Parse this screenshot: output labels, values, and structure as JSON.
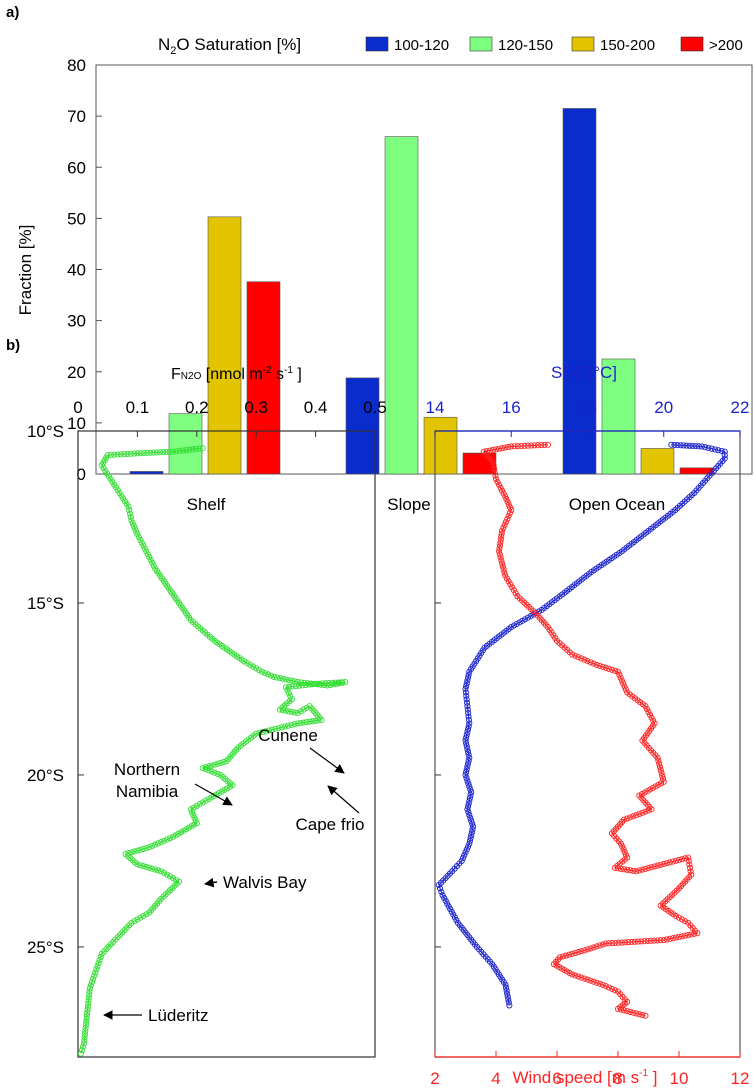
{
  "chart_data": [
    {
      "panel_label": "a)",
      "type": "bar",
      "legend_title": "N2O Saturation [%]",
      "legend_title_parts": {
        "main": "N",
        "sub": "2",
        "rest": "O Saturation [%]"
      },
      "legend_position": "top",
      "ylabel": "Fraction [%]",
      "ylim": [
        0,
        80
      ],
      "yticks": [
        0,
        10,
        20,
        30,
        40,
        50,
        60,
        70,
        80
      ],
      "categories": [
        "Shelf",
        "Slope",
        "Open Ocean"
      ],
      "series": [
        {
          "name": "100-120",
          "color": "#0a2ccc",
          "values": [
            0.5,
            18.8,
            71.5
          ]
        },
        {
          "name": "120-150",
          "color": "#7fff7f",
          "values": [
            11.8,
            66.0,
            22.5
          ]
        },
        {
          "name": "150-200",
          "color": "#e2c400",
          "values": [
            50.3,
            11.1,
            5.0
          ]
        },
        {
          "name": ">200",
          "color": "#ff0000",
          "values": [
            37.6,
            4.1,
            1.2
          ]
        }
      ]
    },
    {
      "panel_label": "b)",
      "type": "line",
      "xlabel_parts": {
        "main": "F",
        "sub": "N2O",
        "rest": " [nmol m",
        "sup": "-2",
        "rest2": "  s",
        "sup2": "-1",
        "rest3": " ]"
      },
      "xlim": [
        0,
        0.5
      ],
      "xticks": [
        "0",
        "0.1",
        "0.2",
        "0.3",
        "0.4",
        "0.5"
      ],
      "ylim": [
        10,
        28.2
      ],
      "ytick_values": [
        10,
        15,
        20,
        25
      ],
      "yticks": [
        "10°S",
        "15°S",
        "20°S",
        "25°S"
      ],
      "series": [
        {
          "name": "F_N2O",
          "color": "#33dd33",
          "x": [
            0.21,
            0.16,
            0.1,
            0.05,
            0.04,
            0.055,
            0.07,
            0.085,
            0.09,
            0.1,
            0.115,
            0.13,
            0.15,
            0.17,
            0.19,
            0.21,
            0.23,
            0.255,
            0.28,
            0.31,
            0.33,
            0.37,
            0.42,
            0.45,
            0.4,
            0.35,
            0.36,
            0.34,
            0.37,
            0.39,
            0.41,
            0.37,
            0.3,
            0.27,
            0.25,
            0.21,
            0.24,
            0.26,
            0.22,
            0.19,
            0.2,
            0.16,
            0.12,
            0.08,
            0.1,
            0.14,
            0.17,
            0.14,
            0.12,
            0.09,
            0.04,
            0.02,
            0.015,
            0.01,
            0.005
          ],
          "y": [
            10.5,
            10.6,
            10.65,
            10.7,
            11.0,
            11.4,
            11.8,
            12.2,
            12.6,
            13.0,
            13.5,
            14.0,
            14.5,
            15.0,
            15.5,
            15.8,
            16.1,
            16.4,
            16.7,
            17.0,
            17.15,
            17.3,
            17.4,
            17.3,
            17.35,
            17.45,
            17.8,
            18.1,
            18.2,
            18.0,
            18.4,
            18.5,
            18.8,
            19.2,
            19.6,
            19.8,
            20.0,
            20.3,
            20.7,
            21.0,
            21.4,
            21.8,
            22.1,
            22.3,
            22.6,
            22.8,
            23.1,
            23.6,
            24.0,
            24.3,
            25.2,
            26.2,
            27.0,
            27.8,
            28.1
          ]
        }
      ],
      "annotations": [
        "Cunene",
        "Northern\nNamibia",
        "Cape frio",
        "Walvis Bay",
        "Lüderitz"
      ],
      "annotation_lines": {
        "cunene": "Cunene",
        "northern1": "Northern",
        "northern2": "Namibia",
        "capefrio": "Cape frio",
        "walvis": "Walvis Bay",
        "luderitz": "Lüderitz"
      }
    },
    {
      "type": "line",
      "top_xlabel": "SST [°C]",
      "top_xlim": [
        14,
        22
      ],
      "top_xticks": [
        "14",
        "16",
        "18",
        "20",
        "22"
      ],
      "bottom_xlabel_parts": {
        "main": "Wind speed [m s",
        "sup": "-1",
        "rest": " ]"
      },
      "bottom_xlim": [
        2,
        12
      ],
      "bottom_xticks": [
        "2",
        "4",
        "6",
        "8",
        "10",
        "12"
      ],
      "ylim": [
        10,
        28.2
      ],
      "series": [
        {
          "name": "SST",
          "color": "#1a22cc",
          "axis": "top",
          "x": [
            20.2,
            21.0,
            21.6,
            21.6,
            21.2,
            20.8,
            20.3,
            19.6,
            18.9,
            18.1,
            17.4,
            16.8,
            16.0,
            15.3,
            14.9,
            14.8,
            14.85,
            14.9,
            14.8,
            14.9,
            14.8,
            14.95,
            14.85,
            15.0,
            14.9,
            14.7,
            14.45,
            14.1,
            14.2,
            14.6,
            15.1,
            15.5,
            15.85,
            15.95
          ],
          "y": [
            10.4,
            10.45,
            10.6,
            10.8,
            11.3,
            11.8,
            12.3,
            12.9,
            13.5,
            14.1,
            14.7,
            15.2,
            15.7,
            16.3,
            17.0,
            17.5,
            18.0,
            18.5,
            19.0,
            19.5,
            20.0,
            20.5,
            21.0,
            21.5,
            22.0,
            22.5,
            22.8,
            23.2,
            23.5,
            24.3,
            25.0,
            25.5,
            26.1,
            26.7
          ]
        },
        {
          "name": "Wind speed",
          "color": "#ff2222",
          "axis": "bottom",
          "x": [
            5.7,
            4.5,
            3.6,
            3.9,
            4.0,
            4.3,
            4.5,
            4.2,
            4.1,
            4.3,
            4.7,
            5.3,
            5.7,
            6.0,
            6.5,
            7.3,
            8.0,
            8.3,
            8.9,
            9.2,
            8.8,
            9.3,
            9.5,
            8.7,
            9.1,
            8.2,
            7.8,
            8.1,
            8.3,
            7.9,
            8.6,
            10.3,
            10.4,
            10.0,
            9.4,
            9.9,
            10.3,
            10.6,
            9.5,
            7.6,
            6.9,
            6.1,
            5.9,
            6.5,
            7.5,
            8.0,
            8.3,
            8.0,
            8.9
          ],
          "y": [
            10.4,
            10.45,
            10.6,
            10.9,
            11.4,
            11.9,
            12.3,
            12.9,
            13.5,
            14.2,
            14.8,
            15.3,
            15.7,
            16.1,
            16.5,
            16.8,
            17.0,
            17.6,
            18.0,
            18.5,
            19.0,
            19.5,
            20.2,
            20.6,
            21.0,
            21.3,
            21.7,
            22.0,
            22.4,
            22.7,
            22.8,
            22.4,
            22.9,
            23.3,
            23.8,
            24.1,
            24.3,
            24.6,
            24.8,
            24.9,
            25.1,
            25.3,
            25.5,
            25.8,
            26.1,
            26.3,
            26.6,
            26.8,
            27.0
          ]
        }
      ]
    }
  ]
}
